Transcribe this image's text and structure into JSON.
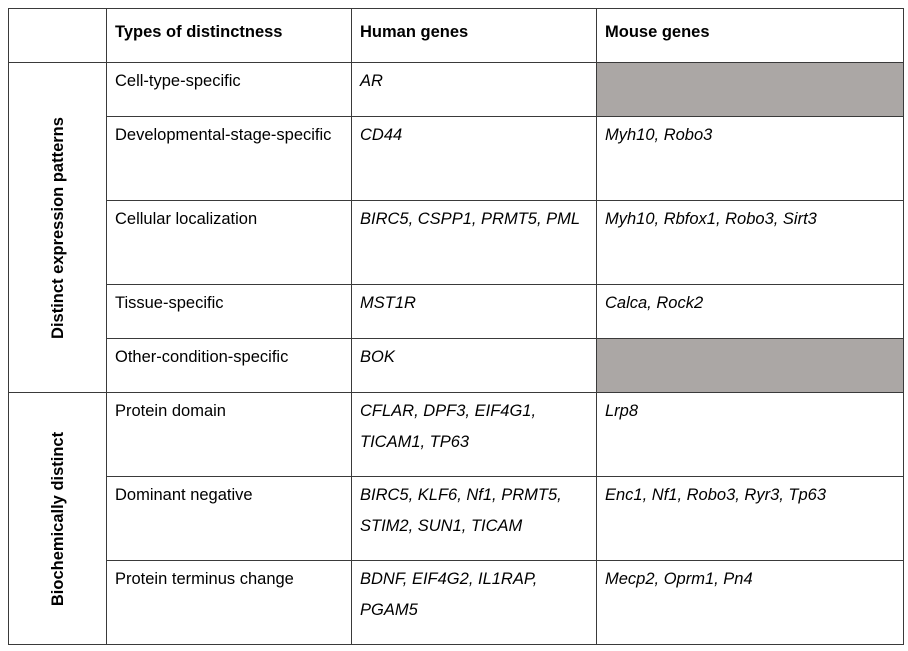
{
  "table": {
    "headers": {
      "corner": "",
      "types": "Types of distinctness",
      "human": "Human genes",
      "mouse": "Mouse genes"
    },
    "groups": [
      {
        "label": "Distinct expression patterns",
        "rows": [
          {
            "type": "Cell-type-specific",
            "human": "AR",
            "mouse": ""
          },
          {
            "type": "Developmental-stage-specific",
            "human": "CD44",
            "mouse": "Myh10, Robo3"
          },
          {
            "type": "Cellular localization",
            "human": "BIRC5, CSPP1, PRMT5, PML",
            "mouse": "Myh10, Rbfox1, Robo3, Sirt3"
          },
          {
            "type": "Tissue-specific",
            "human": "MST1R",
            "mouse": "Calca, Rock2"
          },
          {
            "type": "Other-condition-specific",
            "human": "BOK",
            "mouse": ""
          }
        ]
      },
      {
        "label": "Biochemically distinct",
        "rows": [
          {
            "type": "Protein domain",
            "human": "CFLAR, DPF3, EIF4G1, TICAM1, TP63",
            "mouse": "Lrp8"
          },
          {
            "type": "Dominant negative",
            "human": "BIRC5, KLF6, Nf1, PRMT5, STIM2, SUN1, TICAM",
            "mouse": "Enc1, Nf1, Robo3, Ryr3, Tp63"
          },
          {
            "type": "Protein terminus change",
            "human": "BDNF, EIF4G2, IL1RAP, PGAM5",
            "mouse": "Mecp2, Oprm1, Pn4"
          }
        ]
      }
    ],
    "empty_cell_color": "#aba7a5"
  }
}
